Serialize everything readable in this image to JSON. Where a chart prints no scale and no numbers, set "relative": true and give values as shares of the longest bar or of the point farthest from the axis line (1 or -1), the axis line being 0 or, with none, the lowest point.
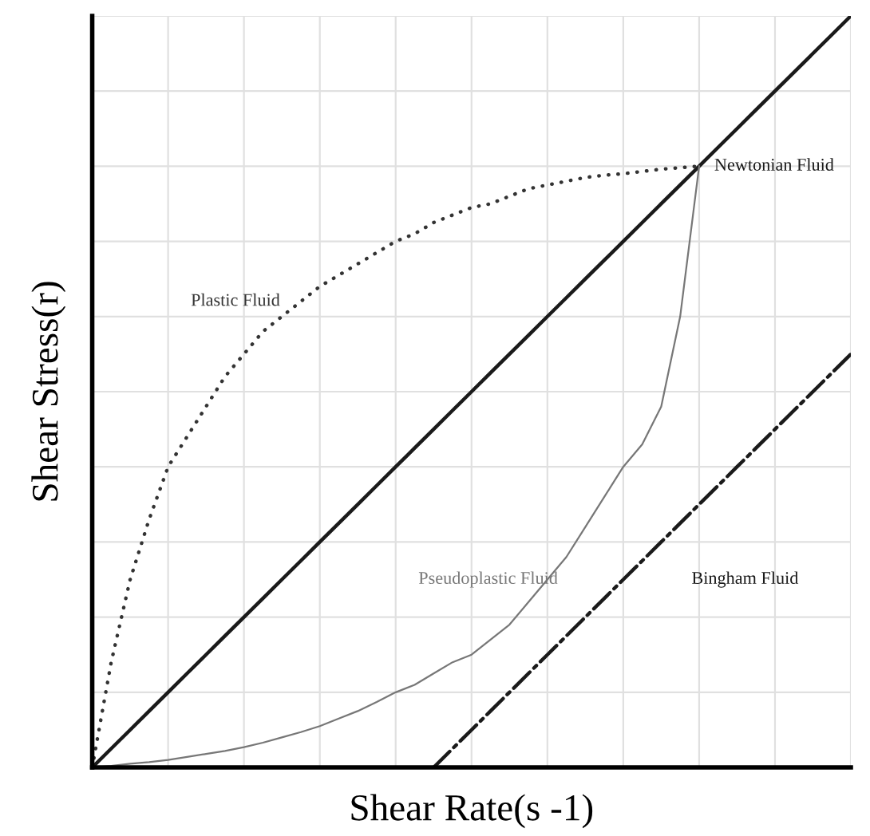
{
  "chart_data": {
    "type": "line",
    "relative": true,
    "xlabel": "Shear Rate(s -1)",
    "ylabel": "Shear Stress(r)",
    "grid": true,
    "tick_labels": false,
    "categories": [
      null,
      null,
      null,
      null,
      null,
      null,
      null,
      null,
      null,
      null,
      null,
      null,
      null,
      null,
      null,
      null,
      null,
      null,
      null,
      null,
      null,
      null,
      null,
      null,
      null,
      null,
      null,
      null,
      null,
      null,
      null,
      null,
      null,
      null,
      null,
      null,
      null,
      null,
      null,
      null,
      null
    ],
    "series": [
      {
        "name": "Newtonian Fluid",
        "color": "#1a1a1a",
        "line_style": "solid",
        "values": [
          0,
          0.025,
          0.05,
          0.075,
          0.1,
          0.125,
          0.15,
          0.175,
          0.2,
          0.225,
          0.25,
          0.275,
          0.3,
          0.325,
          0.35,
          0.375,
          0.4,
          0.425,
          0.45,
          0.475,
          0.5,
          0.525,
          0.55,
          0.575,
          0.6,
          0.625,
          0.65,
          0.675,
          0.7,
          0.725,
          0.75,
          0.775,
          0.8,
          0.825,
          0.85,
          0.875,
          0.9,
          0.925,
          0.95,
          0.975,
          1.0
        ]
      },
      {
        "name": "Plastic Fluid",
        "color": "#333333",
        "line_style": "dotted",
        "values": [
          0,
          0.14,
          0.25,
          0.33,
          0.4,
          0.44,
          0.48,
          0.52,
          0.55,
          0.58,
          0.6,
          0.62,
          0.64,
          0.655,
          0.67,
          0.685,
          0.7,
          0.71,
          0.725,
          0.735,
          0.745,
          0.75,
          0.76,
          0.77,
          0.775,
          0.78,
          0.785,
          0.788,
          0.79,
          0.793,
          0.796,
          0.798,
          0.8,
          null,
          null,
          null,
          null,
          null,
          null,
          null,
          null
        ]
      },
      {
        "name": "Pseudoplastic Fluid",
        "color": "#777777",
        "line_style": "solid",
        "values": [
          0,
          0.002,
          0.005,
          0.007,
          0.01,
          0.014,
          0.018,
          0.022,
          0.027,
          0.033,
          0.04,
          0.047,
          0.055,
          0.065,
          0.075,
          0.087,
          0.1,
          0.11,
          0.125,
          0.14,
          0.15,
          0.17,
          0.19,
          0.22,
          0.25,
          0.28,
          0.32,
          0.36,
          0.4,
          0.43,
          0.48,
          0.6,
          0.8,
          null,
          null,
          null,
          null,
          null,
          null,
          null,
          null
        ]
      },
      {
        "name": "Bingham Fluid",
        "color": "#1a1a1a",
        "line_style": "dashdot",
        "values": [
          null,
          null,
          null,
          null,
          null,
          null,
          null,
          null,
          null,
          null,
          null,
          null,
          null,
          null,
          null,
          null,
          null,
          null,
          0,
          0.025,
          0.05,
          0.075,
          0.1,
          0.125,
          0.15,
          0.175,
          0.2,
          0.225,
          0.25,
          0.275,
          0.3,
          0.325,
          0.35,
          0.375,
          0.4,
          0.425,
          0.45,
          0.475,
          0.5,
          0.525,
          0.55
        ]
      }
    ]
  }
}
